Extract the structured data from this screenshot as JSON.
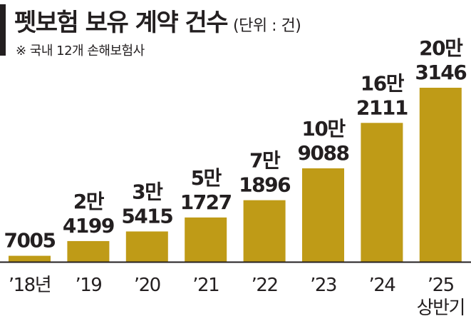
{
  "chart_data": {
    "type": "bar",
    "title": "펫보험 보유 계약 건수",
    "unit": "(단위 : 건)",
    "note": "※ 국내 12개 손해보험사",
    "categories": [
      "’18년",
      "’19",
      "’20",
      "’21",
      "’22",
      "’23",
      "’24",
      "’25"
    ],
    "category_sublabels": [
      "",
      "",
      "",
      "",
      "",
      "",
      "",
      "상반기"
    ],
    "values": [
      7005,
      24199,
      35415,
      51727,
      71896,
      109088,
      162111,
      203146
    ],
    "data_labels": [
      [
        "7005",
        ""
      ],
      [
        "2만",
        "4199"
      ],
      [
        "3만",
        "5415"
      ],
      [
        "5만",
        "1727"
      ],
      [
        "7만",
        "1896"
      ],
      [
        "10만",
        "9088"
      ],
      [
        "16만",
        "2111"
      ],
      [
        "20만",
        "3146"
      ]
    ],
    "ylim": [
      0,
      203146
    ],
    "grid": false,
    "legend": "none",
    "colors": {
      "bar": "#bf9b17",
      "text": "#231f20",
      "baseline": "#231f20"
    }
  }
}
